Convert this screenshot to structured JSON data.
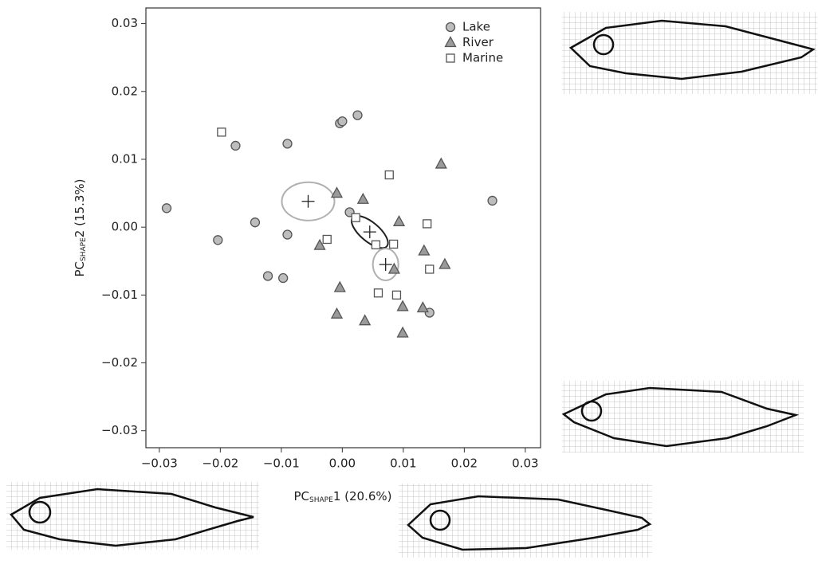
{
  "chart_data": {
    "type": "scatter",
    "x_label": {
      "main": "PC",
      "sub": "SHAPE",
      "rest": "1 (20.6%)"
    },
    "y_label": {
      "main": "PC",
      "sub": "SHAPE",
      "rest": "2 (15.3%)"
    },
    "xlim": [
      -0.0322,
      0.0325
    ],
    "ylim": [
      -0.0325,
      0.0323
    ],
    "xticks": [
      {
        "value": -0.03,
        "label": "−0.03"
      },
      {
        "value": -0.02,
        "label": "−0.02"
      },
      {
        "value": -0.01,
        "label": "−0.01"
      },
      {
        "value": 0,
        "label": "0.00"
      },
      0.01,
      0.02,
      0.03
    ],
    "yticks": [
      {
        "value": -0.03,
        "label": "−0.03"
      },
      {
        "value": -0.02,
        "label": "−0.02"
      },
      {
        "value": -0.01,
        "label": "−0.01"
      },
      {
        "value": 0,
        "label": "0.00"
      },
      0.01,
      0.02,
      0.03
    ],
    "legend": "top-right",
    "series": [
      {
        "name": "Lake",
        "marker": "circle",
        "color": "#bdbdbd",
        "x": [
          -0.0288,
          -0.0204,
          -0.0175,
          -0.0143,
          -0.009,
          -0.009,
          -0.0122,
          -0.0097,
          -0.0004,
          0.0,
          0.0025,
          0.0012,
          0.0143,
          0.0246
        ],
        "y": [
          0.0028,
          -0.0019,
          0.012,
          0.0007,
          0.0123,
          -0.0011,
          -0.0072,
          -0.0075,
          0.0153,
          0.0156,
          0.0165,
          0.0022,
          -0.0126,
          0.0039
        ]
      },
      {
        "name": "River",
        "marker": "triangle",
        "color": "#9a9a9a",
        "x": [
          -0.0009,
          0.0034,
          0.0162,
          0.0093,
          -0.0037,
          0.0134,
          0.0168,
          0.0085,
          -0.0004,
          0.0099,
          0.0132,
          -0.0009,
          0.0037,
          0.0099
        ],
        "y": [
          0.005,
          0.0041,
          0.0093,
          0.0008,
          -0.0027,
          -0.0035,
          -0.0055,
          -0.0062,
          -0.0089,
          -0.0117,
          -0.0119,
          -0.0128,
          -0.0138,
          -0.0156
        ]
      },
      {
        "name": "Marine",
        "marker": "square",
        "color": "#ffffff",
        "x": [
          -0.0198,
          0.0077,
          0.0022,
          -0.0025,
          0.0055,
          0.0084,
          0.0139,
          0.0143,
          0.0059,
          0.0089
        ],
        "y": [
          0.014,
          0.0077,
          0.0014,
          -0.0018,
          -0.0026,
          -0.0025,
          0.0005,
          -0.0062,
          -0.0097,
          -0.01
        ]
      }
    ],
    "centroids": [
      {
        "x": -0.0056,
        "y": 0.0038,
        "color": "#b0b0b0"
      },
      {
        "x": 0.0045,
        "y": -0.0007,
        "color": "#222222"
      },
      {
        "x": 0.0071,
        "y": -0.0055,
        "color": "#b0b0b0"
      }
    ]
  }
}
